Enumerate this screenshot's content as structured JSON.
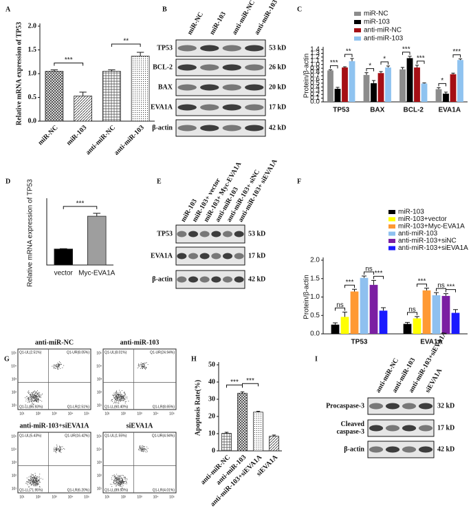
{
  "panel_labels": [
    "A",
    "B",
    "C",
    "D",
    "E",
    "F",
    "G",
    "H",
    "I"
  ],
  "chart_data": [
    {
      "type": "bar",
      "ylabel": "Relative mRNA expression of TP53",
      "categories": [
        "miR-NC",
        "miR-103",
        "anti-miR-NC",
        "anti-miR-103"
      ],
      "values": [
        1.05,
        0.53,
        1.05,
        1.37
      ],
      "errors": [
        0.03,
        0.08,
        0.03,
        0.08
      ],
      "ylim": [
        0,
        2.0
      ],
      "yticks": [
        {
          "value": 0,
          "label": "0.0"
        },
        0.5,
        {
          "value": 1,
          "label": "1.0"
        },
        1.5,
        {
          "value": 2,
          "label": "2.0"
        }
      ],
      "annotations": [
        "***",
        "**"
      ]
    },
    {
      "type": "grouped-bar",
      "ylabel": "Protein/β-actin",
      "categories": [
        "TP53",
        "BAX",
        "BCL-2",
        "EVA1A"
      ],
      "series": [
        {
          "name": "miR-NC",
          "color": "#8c8c8c",
          "values": [
            0.84,
            0.72,
            0.87,
            0.34
          ],
          "errors": [
            0.02,
            0.06,
            0.05,
            0.04
          ]
        },
        {
          "name": "miR-103",
          "color": "#000000",
          "values": [
            0.35,
            0.5,
            1.17,
            0.22
          ],
          "errors": [
            0.04,
            0.07,
            0.05,
            0.04
          ]
        },
        {
          "name": "anti-miR-NC",
          "color": "#a50f15",
          "values": [
            0.92,
            0.77,
            0.92,
            0.74
          ],
          "errors": [
            0.02,
            0.04,
            0.06,
            0.03
          ]
        },
        {
          "name": "anti-miR-103",
          "color": "#8fc3f0",
          "values": [
            1.09,
            0.92,
            0.49,
            1.12
          ],
          "errors": [
            0.07,
            0.04,
            0.02,
            0.03
          ]
        }
      ],
      "ylim": [
        0,
        1.4
      ],
      "yticks": [
        {
          "value": 0,
          "label": "0.0"
        },
        0.1,
        0.2,
        0.3,
        0.4,
        0.5,
        0.6,
        0.7,
        0.8,
        0.9,
        {
          "value": 1,
          "label": "1.0"
        },
        1.1,
        1.2,
        1.3,
        1.4
      ],
      "annotations": [
        [
          "***",
          "**"
        ],
        [
          "*",
          "*"
        ],
        [
          "***",
          "***"
        ],
        [
          "*",
          "***"
        ]
      ]
    },
    {
      "type": "bar",
      "ylabel": "Relative mRNA expression of TP53",
      "categories": [
        "vector",
        "Myc-EVA1A"
      ],
      "values": [
        1.0,
        3.05
      ],
      "errors": [
        0.02,
        0.18
      ],
      "colors": [
        "#000000",
        "#9e9e9e"
      ],
      "ylim": [
        0,
        4
      ],
      "annotations": [
        "***"
      ]
    },
    {
      "type": "grouped-bar",
      "ylabel": "Protein/β-actin",
      "categories": [
        "TP53",
        "EVA1A"
      ],
      "series": [
        {
          "name": "miR-103",
          "color": "#000000",
          "values": [
            0.25,
            0.27
          ],
          "errors": [
            0.05,
            0.04
          ]
        },
        {
          "name": "miR-103+vector",
          "color": "#ffff00",
          "values": [
            0.46,
            0.42
          ],
          "errors": [
            0.13,
            0.05
          ]
        },
        {
          "name": "miR-103+Myc-EVA1A",
          "color": "#ff9933",
          "values": [
            1.15,
            1.18
          ],
          "errors": [
            0.06,
            0.06
          ]
        },
        {
          "name": "anti-miR-103",
          "color": "#8ec0ef",
          "values": [
            1.52,
            1.05
          ],
          "errors": [
            0.05,
            0.07
          ]
        },
        {
          "name": "anti-miR-103+siNC",
          "color": "#7b1fa2",
          "values": [
            1.33,
            1.03
          ],
          "errors": [
            0.12,
            0.06
          ]
        },
        {
          "name": "anti-miR-103+siEVA1A",
          "color": "#1a1aff",
          "values": [
            0.63,
            0.57
          ],
          "errors": [
            0.08,
            0.09
          ]
        }
      ],
      "ylim": [
        0,
        2.0
      ],
      "yticks": [
        {
          "value": 0,
          "label": "0.0"
        },
        0.5,
        {
          "value": 1,
          "label": "1.0"
        },
        1.5,
        {
          "value": 2,
          "label": "2.0"
        }
      ],
      "annotations": [
        [
          "ns",
          "***",
          "ns",
          "***"
        ],
        [
          "ns",
          "***",
          "ns",
          "***"
        ]
      ]
    },
    {
      "type": "bar",
      "ylabel": "Apoptosis Rate(%)",
      "categories": [
        "anti-miR-NC",
        "anti-miR-103",
        "anti-miR-103+siEVA1A",
        "siEVA1A"
      ],
      "values": [
        10.2,
        33.5,
        22.5,
        8.5
      ],
      "errors": [
        0.6,
        0.8,
        0.5,
        0.7
      ],
      "ylim": [
        0,
        50
      ],
      "yticks": [
        0,
        10,
        20,
        30,
        40,
        50
      ],
      "annotations": [
        "***",
        "***"
      ]
    }
  ],
  "blots": [
    {
      "lanes": [
        "miR-NC",
        "miR-103",
        "anti-miR-NC",
        "anti-miR-103"
      ],
      "rows": [
        {
          "label": "TP53",
          "size": "53 kD"
        },
        {
          "label": "BCL-2",
          "size": "26 kD"
        },
        {
          "label": "BAX",
          "size": "20 kD"
        },
        {
          "label": "EVA1A",
          "size": "17 kD"
        },
        {
          "label": "β-actin",
          "size": "42 kD"
        }
      ]
    },
    {
      "lanes": [
        "miR-103",
        "miR-103+ vector",
        "miR-103+ Myc-EVA1A",
        "anti-miR-103",
        "anti-miR-103+ siNC",
        "anti-miR-103+ siEVA1A"
      ],
      "rows": [
        {
          "label": "TP53",
          "size": "53 kD"
        },
        {
          "label": "EVA1A",
          "size": "17 kD"
        },
        {
          "label": "β-actin",
          "size": "42 kD"
        }
      ]
    },
    {
      "lanes": [
        "anti-miR-NC",
        "anti-miR-103",
        "anti-miR-103+siEVA1A",
        "siEVA1A"
      ],
      "rows": [
        {
          "label": [
            "Procaspase-3"
          ],
          "size": "32 kD"
        },
        {
          "label": [
            "Cleaved",
            "caspase-3"
          ],
          "size": "17 kD"
        },
        {
          "label": [
            "β-actin"
          ],
          "size": "42 kD"
        }
      ]
    }
  ],
  "flow": {
    "ticks": [
      "10¹",
      "10²",
      "10³",
      "10⁴",
      "10⁵"
    ],
    "plots": [
      {
        "title": "anti-miR-NC",
        "UL": "Q1-UL(2.51%)",
        "UR": "Q1-UR(8.05%)",
        "LL": "Q1-LL(86.93%)",
        "LR": "Q1-LR(2.51%)"
      },
      {
        "title": "anti-miR-103",
        "UL": "Q1-UL(8.01%)",
        "UR": "Q1-UR(24.94%)",
        "LL": "Q1-LL(60.40%)",
        "LR": "Q1-LR(8.65%)"
      },
      {
        "title": "anti-miR-103+siEVA1A",
        "UL": "Q1-UL(5.43%)",
        "UR": "Q1-UR(16.42%)",
        "LL": "Q1-LL(71.95%)",
        "LR": "Q1-LR(6.20%)"
      },
      {
        "title": "siEVA1A",
        "UL": "Q1-UL(1.55%)",
        "UR": "Q1-UR(4.94%)",
        "LL": "Q1-LL(89.50%)",
        "LR": "Q1-LR(4.01%)"
      }
    ]
  }
}
